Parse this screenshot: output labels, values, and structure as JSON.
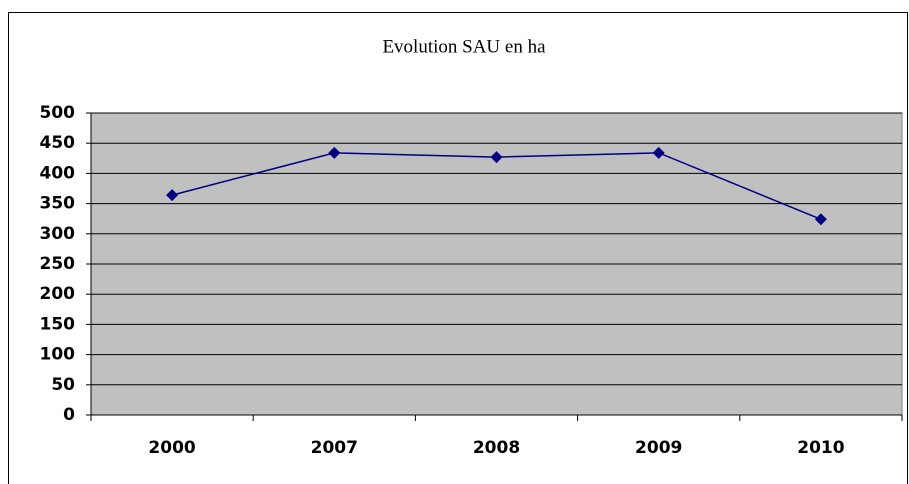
{
  "chart_data": {
    "type": "line",
    "title": "Evolution SAU en ha",
    "categories": [
      "2000",
      "2007",
      "2008",
      "2009",
      "2010"
    ],
    "values": [
      364,
      434,
      427,
      434,
      324
    ],
    "color": "#000080",
    "ylim": [
      0,
      500
    ],
    "yticks": [
      0,
      50,
      100,
      150,
      200,
      250,
      300,
      350,
      400,
      450,
      500
    ],
    "grid": true
  }
}
